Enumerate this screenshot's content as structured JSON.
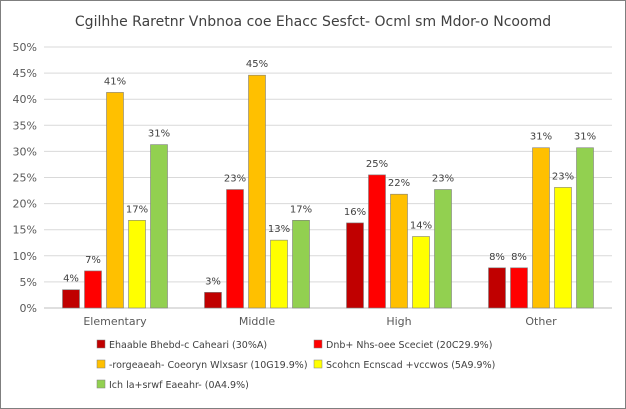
{
  "chart_data": {
    "type": "bar",
    "title": "Cgilhhe Raretnr Vnbnoa coe Ehacc Sesfct- Ocml sm Mdor-o Ncoomd",
    "xlabel": "",
    "ylabel": "",
    "ylim": [
      0,
      50
    ],
    "yticks": [
      "0%",
      "5%",
      "10%",
      "15%",
      "20%",
      "25%",
      "30%",
      "35%",
      "40%",
      "45%",
      "50%"
    ],
    "grid": true,
    "legend_position": "bottom",
    "categories": [
      "Elementary",
      "Middle",
      "High",
      "Other"
    ],
    "series": [
      {
        "name": "Ehaable Bhebd-c Caheari (30%A)",
        "color": "#c00000",
        "values": [
          4,
          3,
          16,
          8
        ],
        "labels": [
          "4%",
          "3%",
          "16%",
          "8%"
        ]
      },
      {
        "name": "Dnb+ Nhs-oee Sceciet (20C29.9%)",
        "color": "#ff0000",
        "values": [
          7,
          23,
          25,
          8
        ],
        "labels": [
          "7%",
          "23%",
          "25%",
          "8%"
        ]
      },
      {
        "name": "-rorgeaeah- Coeoryn Wlxsasr (10G19.9%)",
        "color": "#ffc000",
        "values": [
          41,
          45,
          22,
          31
        ],
        "labels": [
          "41%",
          "45%",
          "22%",
          "31%"
        ]
      },
      {
        "name": "Scohcn Ecnscad +vccwos (5A9.9%)",
        "color": "#ffff00",
        "values": [
          17,
          13,
          14,
          23
        ],
        "labels": [
          "17%",
          "13%",
          "14%",
          "23%"
        ]
      },
      {
        "name": "Ich la+srwf Eaeahr- (0A4.9%)",
        "color": "#92d050",
        "values": [
          31,
          17,
          23,
          31
        ],
        "labels": [
          "31%",
          "17%",
          "23%",
          "31%"
        ]
      }
    ],
    "bar_values": [
      [
        3.5,
        7.1,
        41.3,
        16.8,
        31.3
      ],
      [
        3.0,
        22.7,
        44.6,
        13.0,
        16.8
      ],
      [
        16.3,
        25.5,
        21.8,
        13.7,
        22.7
      ],
      [
        7.7,
        7.7,
        30.7,
        23.1,
        30.7
      ]
    ]
  }
}
